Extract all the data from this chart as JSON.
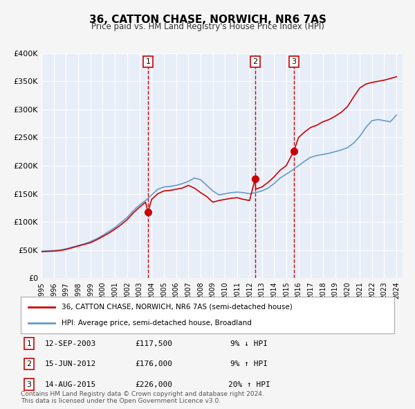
{
  "title": "36, CATTON CHASE, NORWICH, NR6 7AS",
  "subtitle": "Price paid vs. HM Land Registry's House Price Index (HPI)",
  "legend_line1": "36, CATTON CHASE, NORWICH, NR6 7AS (semi-detached house)",
  "legend_line2": "HPI: Average price, semi-detached house, Broadland",
  "price_color": "#cc0000",
  "hpi_color": "#6699cc",
  "background_color": "#f0f4ff",
  "plot_bg_color": "#e8eef8",
  "grid_color": "#ffffff",
  "sale_points": [
    {
      "year": 2003.7,
      "value": 117500,
      "label": "1"
    },
    {
      "year": 2012.45,
      "value": 176000,
      "label": "2"
    },
    {
      "year": 2015.62,
      "value": 226000,
      "label": "3"
    }
  ],
  "vline_years": [
    2003.7,
    2012.45,
    2015.62
  ],
  "table_rows": [
    [
      "1",
      "12-SEP-2003",
      "£117,500",
      "9% ↓ HPI"
    ],
    [
      "2",
      "15-JUN-2012",
      "£176,000",
      "9% ↑ HPI"
    ],
    [
      "3",
      "14-AUG-2015",
      "£226,000",
      "20% ↑ HPI"
    ]
  ],
  "footer": "Contains HM Land Registry data © Crown copyright and database right 2024.\nThis data is licensed under the Open Government Licence v3.0.",
  "ylim": [
    0,
    400000
  ],
  "xlim_start": 1995,
  "xlim_end": 2024.5,
  "hpi_data_x": [
    1995,
    1995.5,
    1996,
    1996.5,
    1997,
    1997.5,
    1998,
    1998.5,
    1999,
    1999.5,
    2000,
    2000.5,
    2001,
    2001.5,
    2002,
    2002.5,
    2003,
    2003.5,
    2004,
    2004.5,
    2005,
    2005.5,
    2006,
    2006.5,
    2007,
    2007.5,
    2008,
    2008.5,
    2009,
    2009.5,
    2010,
    2010.5,
    2011,
    2011.5,
    2012,
    2012.5,
    2013,
    2013.5,
    2014,
    2014.5,
    2015,
    2015.5,
    2016,
    2016.5,
    2017,
    2017.5,
    2018,
    2018.5,
    2019,
    2019.5,
    2020,
    2020.5,
    2021,
    2021.5,
    2022,
    2022.5,
    2023,
    2023.5,
    2024
  ],
  "hpi_data_y": [
    48000,
    48500,
    49000,
    50000,
    52000,
    55000,
    58000,
    61000,
    65000,
    70000,
    76000,
    83000,
    90000,
    99000,
    108000,
    120000,
    130000,
    138000,
    148000,
    158000,
    162000,
    163000,
    165000,
    168000,
    172000,
    178000,
    175000,
    165000,
    155000,
    148000,
    150000,
    152000,
    153000,
    152000,
    150000,
    152000,
    155000,
    160000,
    168000,
    178000,
    185000,
    192000,
    200000,
    208000,
    215000,
    218000,
    220000,
    222000,
    225000,
    228000,
    232000,
    240000,
    252000,
    268000,
    280000,
    282000,
    280000,
    278000,
    290000
  ],
  "price_data_x": [
    1995,
    1995.5,
    1996,
    1996.5,
    1997,
    1997.5,
    1998,
    1998.5,
    1999,
    1999.5,
    2000,
    2000.5,
    2001,
    2001.5,
    2002,
    2002.5,
    2003,
    2003.5,
    2003.7,
    2004,
    2004.5,
    2005,
    2005.5,
    2006,
    2006.5,
    2007,
    2007.5,
    2008,
    2008.5,
    2009,
    2009.5,
    2010,
    2010.5,
    2011,
    2011.5,
    2012,
    2012.45,
    2012.5,
    2013,
    2013.5,
    2014,
    2014.5,
    2015,
    2015.62,
    2016,
    2016.5,
    2017,
    2017.5,
    2018,
    2018.5,
    2019,
    2019.5,
    2020,
    2020.5,
    2021,
    2021.5,
    2022,
    2022.5,
    2023,
    2023.5,
    2024
  ],
  "price_data_y": [
    47000,
    47500,
    48000,
    49000,
    51000,
    54000,
    57000,
    60000,
    63000,
    68000,
    74000,
    80000,
    87000,
    95000,
    104000,
    116000,
    126000,
    135000,
    117500,
    140000,
    150000,
    155000,
    156000,
    158000,
    160000,
    165000,
    160000,
    152000,
    145000,
    135000,
    138000,
    140000,
    142000,
    143000,
    140000,
    138000,
    176000,
    158000,
    162000,
    170000,
    180000,
    192000,
    200000,
    226000,
    250000,
    260000,
    268000,
    272000,
    278000,
    282000,
    288000,
    295000,
    305000,
    322000,
    338000,
    345000,
    348000,
    350000,
    352000,
    355000,
    358000
  ]
}
